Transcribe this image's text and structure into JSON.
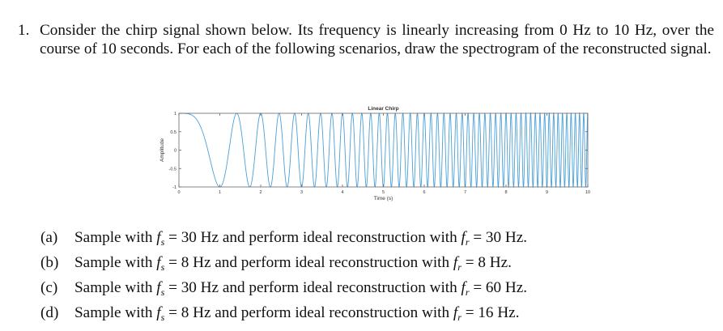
{
  "problem": {
    "number": "1.",
    "text": "Consider the chirp signal shown below. Its frequency is linearly increasing from 0 Hz to 10 Hz, over the course of 10 seconds. For each of the following scenarios, draw the spectrogram of the reconstructed signal."
  },
  "subparts": [
    {
      "label": "(a)",
      "pre": "Sample with ",
      "fs_sym": "f",
      "fs_sub": "s",
      "fs_val": " = 30 Hz and perform ideal reconstruction with ",
      "fr_sym": "f",
      "fr_sub": "r",
      "fr_val": " = 30 Hz."
    },
    {
      "label": "(b)",
      "pre": "Sample with ",
      "fs_sym": "f",
      "fs_sub": "s",
      "fs_val": " = 8 Hz and perform ideal reconstruction with ",
      "fr_sym": "f",
      "fr_sub": "r",
      "fr_val": " = 8 Hz."
    },
    {
      "label": "(c)",
      "pre": "Sample with ",
      "fs_sym": "f",
      "fs_sub": "s",
      "fs_val": " = 30 Hz and perform ideal reconstruction with ",
      "fr_sym": "f",
      "fr_sub": "r",
      "fr_val": " = 60 Hz."
    },
    {
      "label": "(d)",
      "pre": "Sample with ",
      "fs_sym": "f",
      "fs_sub": "s",
      "fs_val": " = 8 Hz and perform ideal reconstruction with ",
      "fr_sym": "f",
      "fr_sub": "r",
      "fr_val": " = 16 Hz."
    }
  ],
  "chart_data": {
    "type": "line",
    "title": "Linear Chirp",
    "xlabel": "Time (s)",
    "ylabel": "Amplitude",
    "xlim": [
      0,
      10
    ],
    "ylim": [
      -1,
      1
    ],
    "xticks": [
      "0",
      "1",
      "2",
      "3",
      "4",
      "5",
      "6",
      "7",
      "8",
      "9",
      "10"
    ],
    "yticks": [
      "1",
      "0.5",
      "0",
      "-0.5",
      "-1"
    ],
    "grid": false,
    "series": [
      {
        "name": "chirp",
        "formula": "cos(2*pi*(f0*t + (f1-f0)/(2*T)*t^2))",
        "f0_hz": 0,
        "f1_hz": 10,
        "duration_s": 10,
        "color": "#4a9fd8"
      }
    ]
  },
  "colors": {
    "text": "#111111",
    "line": "#4a9fd8",
    "axis": "#555555"
  }
}
